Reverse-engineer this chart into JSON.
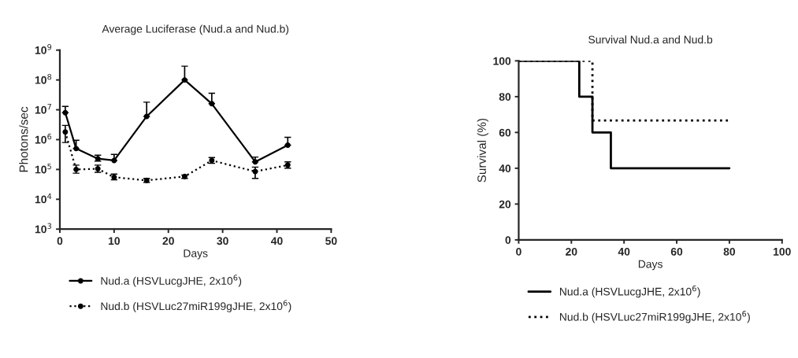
{
  "chart_data": [
    {
      "type": "line",
      "title": "Average Luciferase (Nud.a and Nud.b)",
      "xlabel": "Days",
      "ylabel": "Photons/sec",
      "log": "y",
      "marker": "circle",
      "legend": "bottom",
      "grid": false,
      "x": [
        1,
        3,
        7,
        10,
        16,
        23,
        28,
        36,
        42
      ],
      "xlim": [
        0,
        50
      ],
      "xticks": [
        0,
        10,
        20,
        30,
        40,
        50
      ],
      "ylim": [
        1000,
        1000000000
      ],
      "yticks": [
        {
          "value": 1000,
          "label": "10$^{3}$"
        },
        {
          "value": 10000,
          "label": "10$^{4}$"
        },
        {
          "value": 100000,
          "label": "10$^{5}$"
        },
        {
          "value": 1000000,
          "label": "10$^{6}$"
        },
        {
          "value": 10000000,
          "label": "10$^{7}$"
        },
        {
          "value": 100000000,
          "label": "10$^{8}$"
        },
        {
          "value": 1000000000,
          "label": "10$^{9}$"
        }
      ],
      "series": [
        {
          "name": "Nud.a (HSVLucgJHE, 2x10$^{6}$)",
          "color": "#000000",
          "line_style": "solid",
          "values": [
            8000000,
            500000,
            230000,
            200000,
            6000000,
            100000000,
            16000000,
            180000,
            650000
          ],
          "errors": [
            [
              8000000,
              13000000
            ],
            [
              500000,
              950000
            ],
            [
              190000,
              300000
            ],
            [
              200000,
              320000
            ],
            [
              6000000,
              18000000
            ],
            [
              100000000,
              290000000
            ],
            [
              16000000,
              36000000
            ],
            [
              180000,
              260000
            ],
            [
              650000,
              1200000
            ]
          ]
        },
        {
          "name": "Nud.b (HSVLuc27miR199gJHE, 2x10$^{6}$)",
          "color": "#000000",
          "line_style": "dotted",
          "values": [
            1800000,
            100000,
            105000,
            55000,
            43000,
            58000,
            200000,
            85000,
            140000
          ],
          "errors": [
            [
              800000,
              3000000
            ],
            [
              75000,
              140000
            ],
            [
              80000,
              140000
            ],
            [
              45000,
              70000
            ],
            [
              37000,
              50000
            ],
            [
              50000,
              65000
            ],
            [
              160000,
              250000
            ],
            [
              50000,
              120000
            ],
            [
              110000,
              180000
            ]
          ]
        }
      ]
    },
    {
      "type": "step",
      "title": "Survival Nud.a and Nud.b",
      "xlabel": "Days",
      "ylabel": "Survival (%)",
      "legend": "bottom",
      "grid": false,
      "xlim": [
        0,
        100
      ],
      "xticks": [
        0,
        20,
        40,
        60,
        80,
        100
      ],
      "ylim": [
        0,
        100
      ],
      "yticks": [
        0,
        20,
        40,
        60,
        80,
        100
      ],
      "series": [
        {
          "name": "Nud.a (HSVLucgJHE, 2x10$^{6}$)",
          "color": "#000000",
          "line_style": "solid",
          "x": [
            0,
            23,
            28,
            35,
            80
          ],
          "values": [
            100,
            80,
            60,
            40,
            40
          ]
        },
        {
          "name": "Nud.b (HSVLuc27miR199gJHE, 2x10$^{6}$)",
          "color": "#000000",
          "line_style": "dotted",
          "x": [
            0,
            28,
            80
          ],
          "values": [
            100,
            66.7,
            66.7
          ]
        }
      ]
    }
  ]
}
